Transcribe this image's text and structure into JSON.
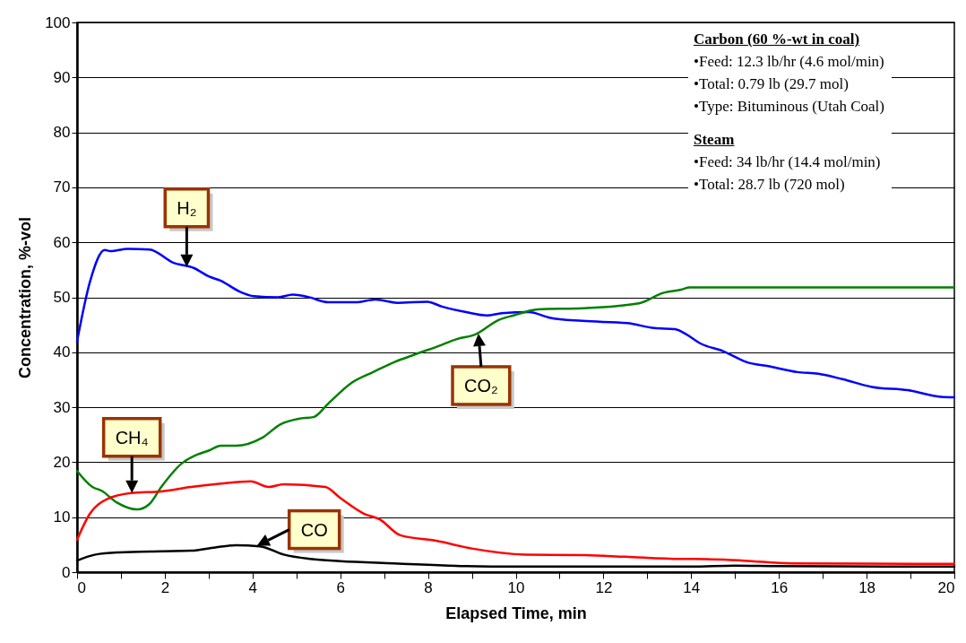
{
  "chart_data": {
    "type": "line",
    "xlabel": "Elapsed Time, min",
    "ylabel": "Concentration, %-vol",
    "xlim": [
      0,
      20
    ],
    "ylim": [
      0,
      100
    ],
    "xticks": [
      0,
      {
        "value": 1,
        "label": null
      },
      2,
      {
        "value": 3,
        "label": null
      },
      4,
      {
        "value": 5,
        "label": null
      },
      6,
      {
        "value": 7,
        "label": null
      },
      8,
      {
        "value": 9,
        "label": null
      },
      10,
      {
        "value": 11,
        "label": null
      },
      12,
      {
        "value": 13,
        "label": null
      },
      14,
      {
        "value": 15,
        "label": null
      },
      16,
      {
        "value": 17,
        "label": null
      },
      18,
      {
        "value": 19,
        "label": null
      },
      20
    ],
    "yticks": [
      0,
      10,
      20,
      30,
      40,
      50,
      60,
      70,
      80,
      90,
      100
    ],
    "grid": "y",
    "line_style": "solid",
    "marker": "none",
    "series": [
      {
        "color": "#0000ff",
        "x": [
          0,
          0.3,
          0.63,
          0.76,
          1.16,
          1.65,
          2.19,
          2.67,
          3.0,
          3.28,
          3.69,
          4.03,
          4.58,
          4.92,
          5.25,
          5.73,
          6.35,
          6.8,
          7.3,
          7.98,
          8.32,
          8.87,
          9.34,
          9.68,
          10.3,
          10.77,
          11.52,
          12.54,
          13.16,
          13.63,
          13.9,
          14.21,
          14.73,
          15.27,
          15.81,
          16.42,
          16.9,
          17.45,
          18.12,
          18.94,
          19.69,
          20
        ],
        "values": [
          42,
          53,
          58.6,
          58.4,
          58.8,
          58.7,
          56.3,
          55.3,
          53.8,
          53.0,
          51.1,
          50.2,
          50.0,
          50.5,
          50.1,
          49.1,
          49.1,
          49.6,
          49.0,
          49.2,
          48.3,
          47.3,
          46.7,
          47.1,
          47.3,
          46.3,
          45.7,
          45.3,
          44.4,
          44.2,
          43.2,
          41.6,
          40.2,
          38.2,
          37.4,
          36.4,
          36.1,
          35.1,
          33.7,
          33.1,
          31.9,
          31.8
        ]
      },
      {
        "color": "#008000",
        "x": [
          0,
          0.35,
          0.56,
          0.9,
          1.37,
          1.65,
          1.92,
          2.39,
          2.74,
          3.0,
          3.28,
          3.62,
          4.23,
          4.64,
          5.05,
          5.39,
          5.73,
          6.27,
          6.75,
          7.23,
          7.7,
          8.3,
          8.66,
          9.07,
          9.62,
          9.95,
          10.5,
          11.52,
          12.81,
          13.36,
          13.77,
          13.97,
          20
        ],
        "values": [
          18.4,
          15.5,
          14.8,
          12.7,
          11.4,
          12.4,
          15.5,
          19.8,
          21.4,
          22.1,
          23.0,
          23.0,
          24.5,
          26.9,
          27.9,
          28.2,
          30.7,
          34.5,
          36.4,
          38.2,
          39.6,
          41.3,
          42.4,
          43.2,
          45.9,
          46.7,
          47.8,
          48.0,
          48.9,
          50.8,
          51.4,
          51.8,
          51.8
        ]
      },
      {
        "color": "#ff0000",
        "x": [
          0,
          0.29,
          0.69,
          1.24,
          1.92,
          2.6,
          3.28,
          3.96,
          4.37,
          4.71,
          5.66,
          6.0,
          6.55,
          6.9,
          7.37,
          8.19,
          9.0,
          10.23,
          11.59,
          12.5,
          13.77,
          14.04,
          15.2,
          16.29,
          20
        ],
        "values": [
          5.9,
          10.6,
          13.3,
          14.4,
          14.7,
          15.5,
          16.1,
          16.5,
          15.5,
          16.0,
          15.5,
          13.5,
          10.6,
          9.6,
          6.7,
          5.7,
          4.3,
          3.2,
          3.1,
          2.8,
          2.4,
          2.4,
          2.1,
          1.6,
          1.5
        ]
      },
      {
        "color": "#000000",
        "x": [
          0,
          0.42,
          0.96,
          1.92,
          2.6,
          3.15,
          3.62,
          4.17,
          4.71,
          5.32,
          6.0,
          7.23,
          8.87,
          10,
          14,
          15,
          16,
          20
        ],
        "values": [
          2.1,
          3.2,
          3.6,
          3.8,
          3.9,
          4.5,
          4.9,
          4.7,
          3.2,
          2.4,
          2.0,
          1.6,
          1.1,
          1.0,
          1.0,
          1.2,
          1.1,
          1.0
        ]
      }
    ],
    "annotations": [
      "Carbon (60 %-wt in coal)",
      "•Feed: 12.3 lb/hr (4.6 mol/min)",
      "•Total: 0.79 lb (29.7 mol)",
      "•Type: Bituminous (Utah Coal)",
      "Steam",
      "•Feed: 34 lb/hr (14.4 mol/min)",
      "•Total: 28.7 lb (720 mol)",
      {
        "text": "H₂",
        "x": 2.5,
        "y": 55.5
      },
      {
        "text": "CH₄",
        "x": 1.25,
        "y": 14.4
      },
      {
        "text": "CO₂",
        "x": 9.15,
        "y": 43.4
      },
      {
        "text": "CO",
        "x": 4.1,
        "y": 4.8
      }
    ]
  }
}
